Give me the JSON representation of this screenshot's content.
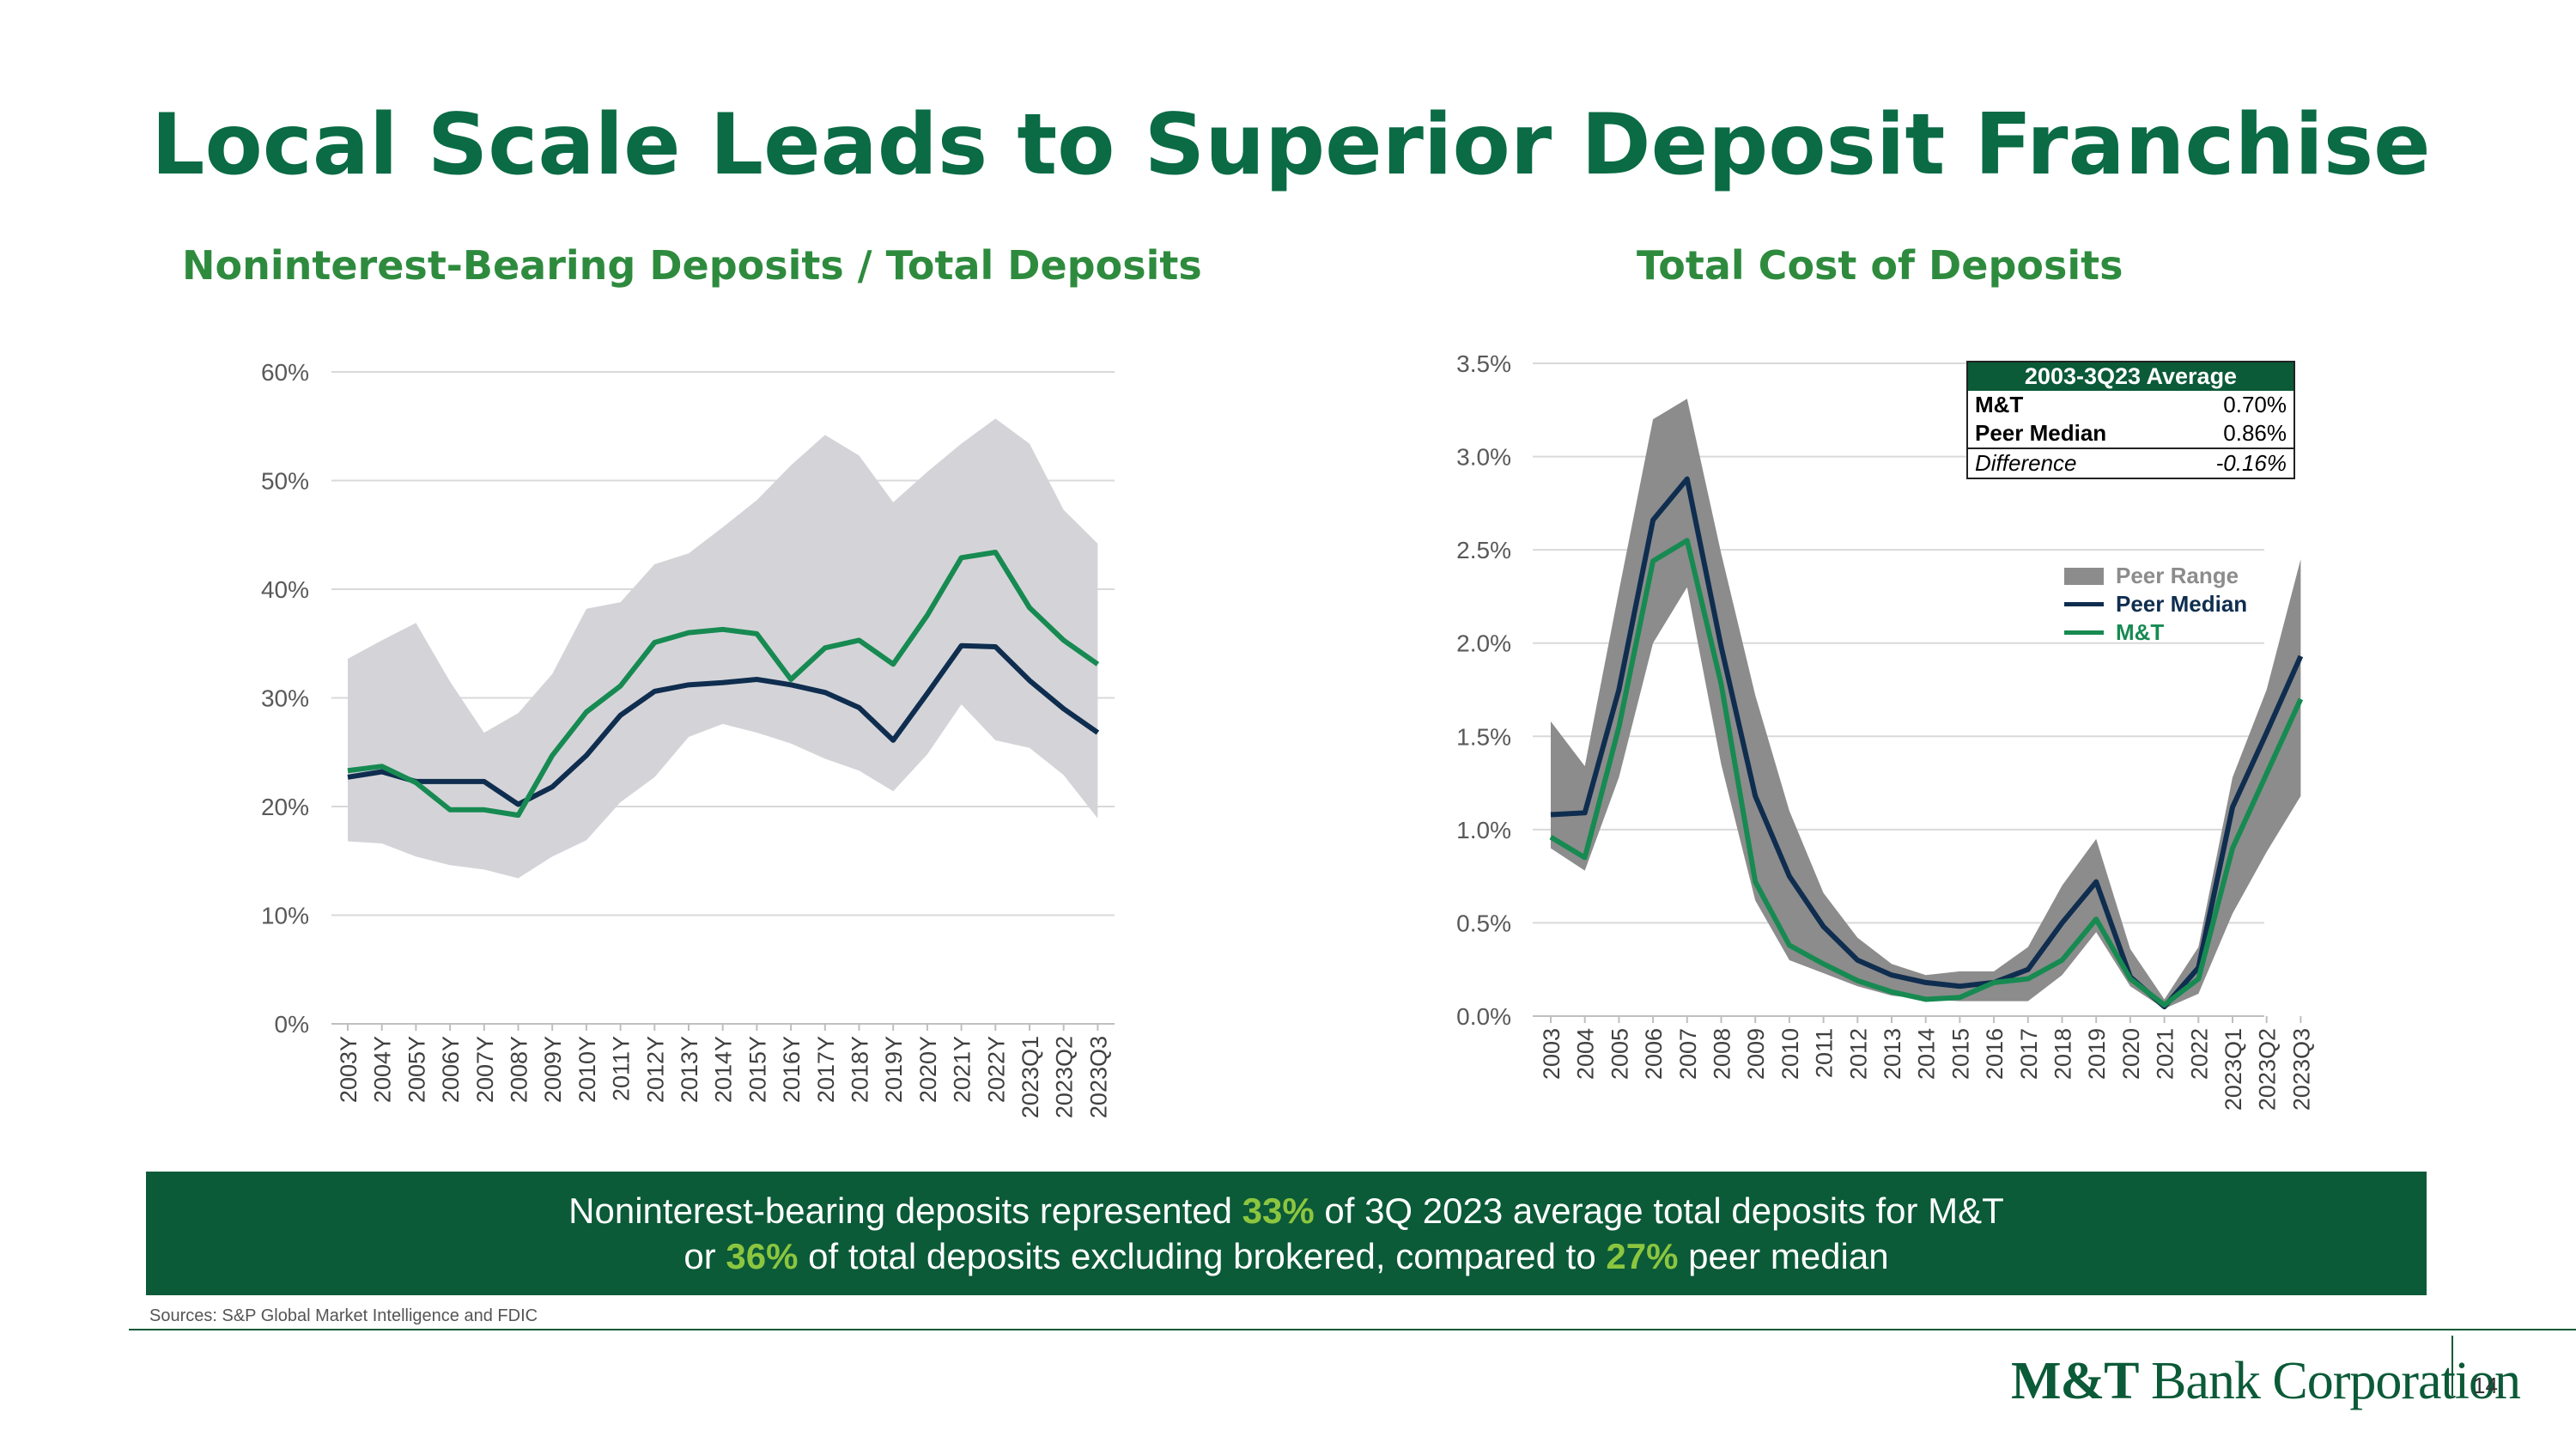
{
  "title": "Local Scale Leads to Superior Deposit Franchise",
  "colors": {
    "title": "#0a6b45",
    "subtitle": "#2e8b3e",
    "mt_green": "#178a52",
    "peer_navy": "#0f2d4f",
    "range_light": "#d4d4d8",
    "range_dark": "#8c8c8c",
    "highlight": "#8cc63f"
  },
  "chart_data": [
    {
      "type": "line",
      "title": "Noninterest-Bearing Deposits / Total Deposits",
      "x": [
        "2003Y",
        "2004Y",
        "2005Y",
        "2006Y",
        "2007Y",
        "2008Y",
        "2009Y",
        "2010Y",
        "2011Y",
        "2012Y",
        "2013Y",
        "2014Y",
        "2015Y",
        "2016Y",
        "2017Y",
        "2018Y",
        "2019Y",
        "2020Y",
        "2021Y",
        "2022Y",
        "2023Q1",
        "2023Q2",
        "2023Q3"
      ],
      "ylim": [
        0,
        60
      ],
      "yticks": [
        0,
        10,
        20,
        30,
        40,
        50,
        60
      ],
      "ytick_labels": [
        "0%",
        "10%",
        "20%",
        "30%",
        "40%",
        "50%",
        "60%"
      ],
      "series": [
        {
          "name": "M&T",
          "values": [
            23.3,
            23.7,
            22.2,
            19.7,
            19.7,
            19.2,
            24.7,
            28.7,
            31.1,
            35.1,
            36.0,
            36.3,
            35.9,
            31.7,
            34.6,
            35.3,
            33.1,
            37.6,
            42.9,
            43.4,
            38.3,
            35.3,
            33.1
          ]
        },
        {
          "name": "Peer Median",
          "values": [
            22.7,
            23.2,
            22.3,
            22.3,
            22.3,
            20.2,
            21.8,
            24.7,
            28.4,
            30.6,
            31.2,
            31.4,
            31.7,
            31.2,
            30.5,
            29.1,
            26.1,
            30.4,
            34.8,
            34.7,
            31.6,
            29.0,
            26.8
          ]
        }
      ],
      "range": {
        "low": [
          16.8,
          16.6,
          15.4,
          14.6,
          14.2,
          13.4,
          15.4,
          16.9,
          20.4,
          22.7,
          26.4,
          27.6,
          26.8,
          25.8,
          24.4,
          23.3,
          21.4,
          24.8,
          29.4,
          26.1,
          25.4,
          22.9,
          18.9
        ],
        "high": [
          33.6,
          35.3,
          36.9,
          31.5,
          26.8,
          28.6,
          32.2,
          38.2,
          38.8,
          42.3,
          43.3,
          45.7,
          48.2,
          51.4,
          54.2,
          52.3,
          48.0,
          50.8,
          53.4,
          55.7,
          53.4,
          47.3,
          44.2
        ]
      }
    },
    {
      "type": "line",
      "title": "Total Cost of Deposits",
      "x": [
        "2003",
        "2004",
        "2005",
        "2006",
        "2007",
        "2008",
        "2009",
        "2010",
        "2011",
        "2012",
        "2013",
        "2014",
        "2015",
        "2016",
        "2017",
        "2018",
        "2019",
        "2020",
        "2021",
        "2022",
        "2023Q1",
        "2023Q2",
        "2023Q3"
      ],
      "ylim": [
        0,
        3.5
      ],
      "yticks": [
        0,
        0.5,
        1.0,
        1.5,
        2.0,
        2.5,
        3.0,
        3.5
      ],
      "ytick_labels": [
        "0.0%",
        "0.5%",
        "1.0%",
        "1.5%",
        "2.0%",
        "2.5%",
        "3.0%",
        "3.5%"
      ],
      "series": [
        {
          "name": "M&T",
          "values": [
            0.96,
            0.85,
            1.55,
            2.44,
            2.55,
            1.78,
            0.72,
            0.38,
            0.28,
            0.19,
            0.13,
            0.09,
            0.1,
            0.18,
            0.2,
            0.3,
            0.52,
            0.2,
            0.06,
            0.2,
            0.9,
            1.3,
            1.7
          ]
        },
        {
          "name": "Peer Median",
          "values": [
            1.08,
            1.09,
            1.75,
            2.66,
            2.88,
            1.98,
            1.18,
            0.75,
            0.48,
            0.3,
            0.22,
            0.18,
            0.16,
            0.18,
            0.25,
            0.5,
            0.72,
            0.21,
            0.05,
            0.26,
            1.12,
            1.52,
            1.93
          ]
        }
      ],
      "range": {
        "low": [
          0.9,
          0.78,
          1.28,
          2.0,
          2.3,
          1.35,
          0.62,
          0.3,
          0.23,
          0.16,
          0.11,
          0.09,
          0.08,
          0.08,
          0.08,
          0.22,
          0.45,
          0.16,
          0.04,
          0.12,
          0.55,
          0.88,
          1.18
        ],
        "high": [
          1.58,
          1.34,
          2.28,
          3.2,
          3.31,
          2.48,
          1.72,
          1.1,
          0.66,
          0.42,
          0.28,
          0.22,
          0.24,
          0.24,
          0.37,
          0.7,
          0.95,
          0.36,
          0.09,
          0.37,
          1.28,
          1.75,
          2.45
        ]
      }
    }
  ],
  "table": {
    "header": "2003-3Q23 Average",
    "rows": [
      {
        "label": "M&T",
        "value": "0.70%"
      },
      {
        "label": "Peer Median",
        "value": "0.86%"
      }
    ],
    "diff_label": "Difference",
    "diff_value": "-0.16%"
  },
  "legend": {
    "range": "Peer Range",
    "median": "Peer Median",
    "mt": "M&T"
  },
  "callout": {
    "line1_pre": "Noninterest-bearing deposits represented ",
    "line1_hl": "33%",
    "line1_post": " of 3Q 2023 average total deposits for M&T",
    "line2_pre": "or ",
    "line2_hl1": "36%",
    "line2_mid": " of total deposits excluding brokered, compared to ",
    "line2_hl2": "27%",
    "line2_post": " peer median"
  },
  "sources": "Sources: S&P Global Market Intelligence and FDIC",
  "logo": {
    "bold": "M&T",
    "rest": " Bank Corporation"
  },
  "page_number": "14"
}
